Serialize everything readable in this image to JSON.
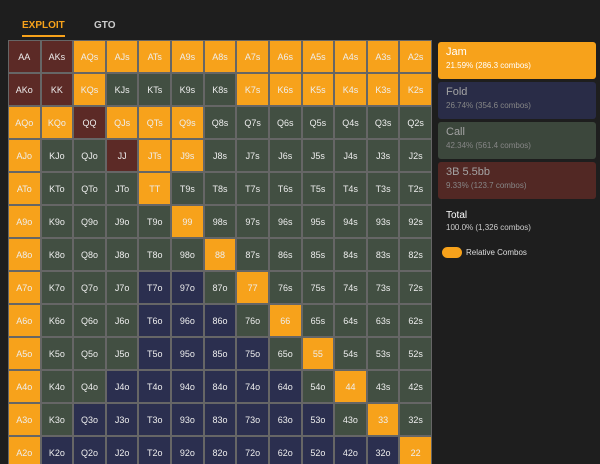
{
  "tabs": {
    "active": "EXPLOIT",
    "other": "GTO"
  },
  "grid": {
    "hands": [
      [
        "AA",
        "AKs",
        "AQs",
        "AJs",
        "ATs",
        "A9s",
        "A8s",
        "A7s",
        "A6s",
        "A5s",
        "A4s",
        "A3s",
        "A2s"
      ],
      [
        "AKo",
        "KK",
        "KQs",
        "KJs",
        "KTs",
        "K9s",
        "K8s",
        "K7s",
        "K6s",
        "K5s",
        "K4s",
        "K3s",
        "K2s"
      ],
      [
        "AQo",
        "KQo",
        "QQ",
        "QJs",
        "QTs",
        "Q9s",
        "Q8s",
        "Q7s",
        "Q6s",
        "Q5s",
        "Q4s",
        "Q3s",
        "Q2s"
      ],
      [
        "AJo",
        "KJo",
        "QJo",
        "JJ",
        "JTs",
        "J9s",
        "J8s",
        "J7s",
        "J6s",
        "J5s",
        "J4s",
        "J3s",
        "J2s"
      ],
      [
        "ATo",
        "KTo",
        "QTo",
        "JTo",
        "TT",
        "T9s",
        "T8s",
        "T7s",
        "T6s",
        "T5s",
        "T4s",
        "T3s",
        "T2s"
      ],
      [
        "A9o",
        "K9o",
        "Q9o",
        "J9o",
        "T9o",
        "99",
        "98s",
        "97s",
        "96s",
        "95s",
        "94s",
        "93s",
        "92s"
      ],
      [
        "A8o",
        "K8o",
        "Q8o",
        "J8o",
        "T8o",
        "98o",
        "88",
        "87s",
        "86s",
        "85s",
        "84s",
        "83s",
        "82s"
      ],
      [
        "A7o",
        "K7o",
        "Q7o",
        "J7o",
        "T7o",
        "97o",
        "87o",
        "77",
        "76s",
        "75s",
        "74s",
        "73s",
        "72s"
      ],
      [
        "A6o",
        "K6o",
        "Q6o",
        "J6o",
        "T6o",
        "96o",
        "86o",
        "76o",
        "66",
        "65s",
        "64s",
        "63s",
        "62s"
      ],
      [
        "A5o",
        "K5o",
        "Q5o",
        "J5o",
        "T5o",
        "95o",
        "85o",
        "75o",
        "65o",
        "55",
        "54s",
        "53s",
        "52s"
      ],
      [
        "A4o",
        "K4o",
        "Q4o",
        "J4o",
        "T4o",
        "94o",
        "84o",
        "74o",
        "64o",
        "54o",
        "44",
        "43s",
        "42s"
      ],
      [
        "A3o",
        "K3o",
        "Q3o",
        "J3o",
        "T3o",
        "93o",
        "83o",
        "73o",
        "63o",
        "53o",
        "43o",
        "33",
        "32s"
      ],
      [
        "A2o",
        "K2o",
        "Q2o",
        "J2o",
        "T2o",
        "92o",
        "82o",
        "72o",
        "62o",
        "52o",
        "42o",
        "32o",
        "22"
      ]
    ],
    "colors": [
      [
        "#5c2a26",
        "#5c2a26",
        "#f7a21b",
        "#f7a21b",
        "#f7a21b",
        "#f7a21b",
        "#f7a21b",
        "#f7a21b",
        "#f7a21b",
        "#f7a21b",
        "#f7a21b",
        "#f7a21b",
        "#f7a21b"
      ],
      [
        "#5c2a26",
        "#5c2a26",
        "#f7a21b",
        "#424f42",
        "#424f42",
        "#424f42",
        "#424f42",
        "#f7a21b",
        "#f7a21b",
        "#f7a21b",
        "#f7a21b",
        "#f7a21b",
        "#f7a21b"
      ],
      [
        "#f7a21b",
        "#f7a21b",
        "#5c2a26",
        "#f7a21b",
        "#f7a21b",
        "#f7a21b",
        "#424f42",
        "#424f42",
        "#424f42",
        "#424f42",
        "#424f42",
        "#424f42",
        "#424f42"
      ],
      [
        "#f7a21b",
        "#424f42",
        "#424f42",
        "#5c2a26",
        "#f7a21b",
        "#f7a21b",
        "#424f42",
        "#424f42",
        "#424f42",
        "#424f42",
        "#424f42",
        "#424f42",
        "#424f42"
      ],
      [
        "#f7a21b",
        "#424f42",
        "#424f42",
        "#424f42",
        "#f7a21b",
        "#424f42",
        "#424f42",
        "#424f42",
        "#424f42",
        "#424f42",
        "#424f42",
        "#424f42",
        "#424f42"
      ],
      [
        "#f7a21b",
        "#424f42",
        "#424f42",
        "#424f42",
        "#424f42",
        "#f7a21b",
        "#424f42",
        "#424f42",
        "#424f42",
        "#424f42",
        "#424f42",
        "#424f42",
        "#424f42"
      ],
      [
        "#f7a21b",
        "#424f42",
        "#424f42",
        "#424f42",
        "#424f42",
        "#424f42",
        "#f7a21b",
        "#424f42",
        "#424f42",
        "#424f42",
        "#424f42",
        "#424f42",
        "#424f42"
      ],
      [
        "#f7a21b",
        "#424f42",
        "#424f42",
        "#424f42",
        "#2b2f4f",
        "#2b2f4f",
        "#424f42",
        "#f7a21b",
        "#424f42",
        "#424f42",
        "#424f42",
        "#424f42",
        "#424f42"
      ],
      [
        "#f7a21b",
        "#424f42",
        "#424f42",
        "#424f42",
        "#2b2f4f",
        "#2b2f4f",
        "#2b2f4f",
        "#424f42",
        "#f7a21b",
        "#424f42",
        "#424f42",
        "#424f42",
        "#424f42"
      ],
      [
        "#f7a21b",
        "#424f42",
        "#424f42",
        "#424f42",
        "#2b2f4f",
        "#2b2f4f",
        "#2b2f4f",
        "#2b2f4f",
        "#424f42",
        "#f7a21b",
        "#424f42",
        "#424f42",
        "#424f42"
      ],
      [
        "#f7a21b",
        "#424f42",
        "#424f42",
        "#2b2f4f",
        "#2b2f4f",
        "#2b2f4f",
        "#2b2f4f",
        "#2b2f4f",
        "#2b2f4f",
        "#424f42",
        "#f7a21b",
        "#424f42",
        "#424f42"
      ],
      [
        "#f7a21b",
        "#424f42",
        "#2b2f4f",
        "#2b2f4f",
        "#2b2f4f",
        "#2b2f4f",
        "#2b2f4f",
        "#2b2f4f",
        "#2b2f4f",
        "#2b2f4f",
        "#424f42",
        "#f7a21b",
        "#424f42"
      ],
      [
        "#f7a21b",
        "#2b2f4f",
        "#2b2f4f",
        "#2b2f4f",
        "#2b2f4f",
        "#2b2f4f",
        "#2b2f4f",
        "#2b2f4f",
        "#2b2f4f",
        "#2b2f4f",
        "#2b2f4f",
        "#2b2f4f",
        "#f7a21b"
      ]
    ]
  },
  "actions": [
    {
      "name": "Jam",
      "stat": "21.59% (286.3 combos)",
      "color": "#f7a21b"
    },
    {
      "name": "Fold",
      "stat": "26.74% (354.6 combos)",
      "color": "#2b2f4f"
    },
    {
      "name": "Call",
      "stat": "42.34% (561.4 combos)",
      "color": "#424f42"
    },
    {
      "name": "3B 5.5bb",
      "stat": "9.33% (123.7 combos)",
      "color": "#5c2a26"
    }
  ],
  "total": {
    "label": "Total",
    "stat": "100.0% (1,326 combos)"
  },
  "toggle": {
    "label": "Relative Combos"
  }
}
